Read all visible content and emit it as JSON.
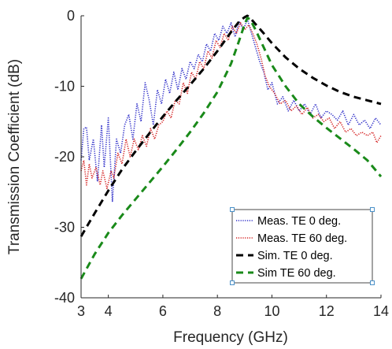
{
  "chart_data": {
    "type": "line",
    "xlabel": "Frequency (GHz)",
    "ylabel": "Transmission Coefficient (dB)",
    "xlim": [
      3,
      14
    ],
    "ylim": [
      -40,
      0
    ],
    "xticks": [
      3,
      4,
      6,
      8,
      10,
      12,
      14
    ],
    "yticks": [
      0,
      -10,
      -20,
      -30,
      -40
    ],
    "grid": false,
    "legend_position": "bottom-right",
    "series": [
      {
        "name": "Meas. TE 0 deg.",
        "color": "#2b2bc8",
        "style": "dotted",
        "x": [
          3.0,
          3.1,
          3.2,
          3.3,
          3.45,
          3.6,
          3.75,
          3.85,
          4.0,
          4.15,
          4.3,
          4.45,
          4.6,
          4.75,
          4.9,
          5.05,
          5.2,
          5.35,
          5.5,
          5.65,
          5.8,
          5.95,
          6.1,
          6.25,
          6.4,
          6.55,
          6.7,
          6.85,
          7.0,
          7.15,
          7.3,
          7.45,
          7.6,
          7.75,
          7.9,
          8.05,
          8.2,
          8.35,
          8.5,
          8.65,
          8.8,
          8.95,
          9.1,
          9.25,
          9.4,
          9.55,
          9.7,
          9.85,
          10.0,
          10.2,
          10.4,
          10.6,
          10.8,
          11.0,
          11.2,
          11.4,
          11.6,
          11.8,
          12.0,
          12.2,
          12.4,
          12.6,
          12.8,
          13.0,
          13.2,
          13.4,
          13.6,
          13.8,
          14.0
        ],
        "y": [
          -20.5,
          -16.0,
          -15.8,
          -20.5,
          -17.5,
          -23.5,
          -15.5,
          -21.5,
          -14.5,
          -26.3,
          -17.5,
          -19.5,
          -15.5,
          -14.0,
          -17.5,
          -12.5,
          -15.0,
          -9.5,
          -12.0,
          -15.5,
          -10.5,
          -12.5,
          -9.0,
          -11.0,
          -8.0,
          -10.5,
          -7.5,
          -9.0,
          -6.5,
          -7.5,
          -5.5,
          -6.5,
          -4.0,
          -5.0,
          -2.5,
          -3.5,
          -1.5,
          -2.5,
          -1.0,
          -3.0,
          -0.8,
          -2.0,
          -0.5,
          -2.5,
          -4.5,
          -6.5,
          -8.0,
          -10.5,
          -9.5,
          -12.5,
          -11.5,
          -13.5,
          -12.0,
          -13.5,
          -12.5,
          -14.0,
          -12.5,
          -14.5,
          -13.5,
          -14.0,
          -14.8,
          -13.5,
          -15.5,
          -14.0,
          -15.5,
          -14.8,
          -16.0,
          -14.5,
          -15.5
        ]
      },
      {
        "name": "Meas. TE 60 deg.",
        "color": "#d42020",
        "style": "dotted",
        "x": [
          3.0,
          3.1,
          3.2,
          3.3,
          3.4,
          3.55,
          3.7,
          3.8,
          3.95,
          4.1,
          4.2,
          4.35,
          4.5,
          4.65,
          4.8,
          4.95,
          5.1,
          5.25,
          5.4,
          5.55,
          5.7,
          5.85,
          6.0,
          6.15,
          6.3,
          6.45,
          6.6,
          6.75,
          6.9,
          7.05,
          7.2,
          7.35,
          7.5,
          7.65,
          7.8,
          7.95,
          8.1,
          8.25,
          8.4,
          8.55,
          8.7,
          8.85,
          9.0,
          9.15,
          9.3,
          9.45,
          9.6,
          9.75,
          9.9,
          10.1,
          10.3,
          10.5,
          10.7,
          10.9,
          11.1,
          11.3,
          11.5,
          11.7,
          11.9,
          12.1,
          12.3,
          12.5,
          12.7,
          12.9,
          13.1,
          13.3,
          13.5,
          13.7,
          13.85,
          14.0
        ],
        "y": [
          -22.0,
          -20.5,
          -24.0,
          -21.0,
          -23.0,
          -21.5,
          -24.0,
          -22.0,
          -24.5,
          -22.0,
          -23.0,
          -19.5,
          -21.0,
          -17.5,
          -20.0,
          -17.5,
          -19.0,
          -17.0,
          -18.5,
          -16.0,
          -17.5,
          -15.5,
          -15.0,
          -13.5,
          -14.5,
          -12.0,
          -12.5,
          -9.5,
          -11.0,
          -8.0,
          -9.0,
          -6.5,
          -7.5,
          -5.0,
          -6.0,
          -3.5,
          -4.5,
          -2.5,
          -3.5,
          -1.5,
          -2.5,
          -1.0,
          -2.0,
          -1.3,
          -2.5,
          -4.0,
          -6.0,
          -8.5,
          -10.0,
          -11.0,
          -12.5,
          -12.0,
          -13.5,
          -12.8,
          -14.0,
          -13.0,
          -14.5,
          -14.0,
          -15.0,
          -14.5,
          -16.0,
          -15.0,
          -16.5,
          -16.0,
          -17.0,
          -16.5,
          -17.0,
          -16.5,
          -18.0,
          -17.0
        ]
      },
      {
        "name": "Sim. TE 0 deg.",
        "color": "#000000",
        "style": "dashed",
        "x": [
          3.0,
          3.5,
          4.0,
          4.5,
          5.0,
          5.5,
          6.0,
          6.5,
          7.0,
          7.5,
          8.0,
          8.5,
          8.8,
          9.0,
          9.1,
          9.2,
          9.4,
          9.7,
          10.0,
          10.5,
          11.0,
          11.5,
          12.0,
          12.5,
          13.0,
          13.5,
          14.0
        ],
        "y": [
          -31.3,
          -28.0,
          -24.8,
          -21.8,
          -19.2,
          -16.7,
          -14.3,
          -12.0,
          -9.8,
          -7.5,
          -5.0,
          -2.3,
          -0.8,
          -0.2,
          0.0,
          -0.3,
          -1.2,
          -2.5,
          -3.9,
          -5.9,
          -7.5,
          -8.8,
          -9.9,
          -10.8,
          -11.5,
          -12.0,
          -12.5
        ]
      },
      {
        "name": "Sim TE 60 deg.",
        "color": "#1a8a1a",
        "style": "dashed",
        "x": [
          3.0,
          3.5,
          4.0,
          4.5,
          5.0,
          5.5,
          6.0,
          6.5,
          7.0,
          7.5,
          8.0,
          8.5,
          8.8,
          9.0,
          9.1,
          9.2,
          9.4,
          9.7,
          10.0,
          10.5,
          11.0,
          11.5,
          12.0,
          12.5,
          13.0,
          13.5,
          14.0
        ],
        "y": [
          -37.3,
          -33.8,
          -30.8,
          -28.3,
          -26.0,
          -23.7,
          -21.4,
          -19.0,
          -16.5,
          -13.8,
          -10.8,
          -6.8,
          -3.5,
          -1.2,
          -0.3,
          -0.5,
          -2.0,
          -4.5,
          -7.0,
          -10.0,
          -12.5,
          -14.3,
          -15.9,
          -17.4,
          -18.9,
          -20.5,
          -22.8
        ]
      }
    ]
  }
}
